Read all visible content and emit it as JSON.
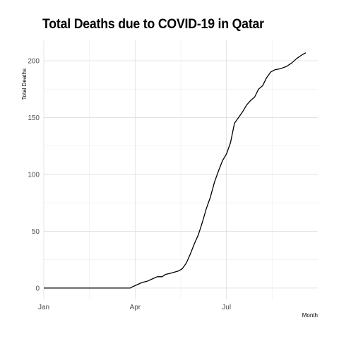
{
  "chart_data": {
    "type": "line",
    "title": "Total Deaths due to COVID-19 in Qatar",
    "xlabel": "Month",
    "ylabel": "Total Deaths",
    "x_ticks": [
      "Jan",
      "Apr",
      "Jul"
    ],
    "y_ticks": [
      0,
      50,
      100,
      150,
      200
    ],
    "xlim": [
      "2020-01-01",
      "2020-09-30"
    ],
    "ylim": [
      -10,
      218
    ],
    "grid": true,
    "line_color": "#000000",
    "series": [
      {
        "points": [
          [
            "2020-01-01",
            0
          ],
          [
            "2020-02-01",
            0
          ],
          [
            "2020-03-01",
            0
          ],
          [
            "2020-03-27",
            0
          ],
          [
            "2020-03-29",
            1
          ],
          [
            "2020-04-03",
            3
          ],
          [
            "2020-04-08",
            5
          ],
          [
            "2020-04-13",
            6
          ],
          [
            "2020-04-18",
            8
          ],
          [
            "2020-04-23",
            10
          ],
          [
            "2020-04-28",
            10
          ],
          [
            "2020-05-01",
            12
          ],
          [
            "2020-05-06",
            13
          ],
          [
            "2020-05-10",
            14
          ],
          [
            "2020-05-14",
            15
          ],
          [
            "2020-05-18",
            17
          ],
          [
            "2020-05-22",
            22
          ],
          [
            "2020-05-26",
            30
          ],
          [
            "2020-05-30",
            39
          ],
          [
            "2020-06-03",
            47
          ],
          [
            "2020-06-07",
            58
          ],
          [
            "2020-06-11",
            70
          ],
          [
            "2020-06-15",
            80
          ],
          [
            "2020-06-19",
            93
          ],
          [
            "2020-06-23",
            103
          ],
          [
            "2020-06-27",
            112
          ],
          [
            "2020-07-01",
            118
          ],
          [
            "2020-07-05",
            128
          ],
          [
            "2020-07-09",
            145
          ],
          [
            "2020-07-13",
            150
          ],
          [
            "2020-07-17",
            155
          ],
          [
            "2020-07-21",
            161
          ],
          [
            "2020-07-25",
            165
          ],
          [
            "2020-07-29",
            168
          ],
          [
            "2020-08-02",
            175
          ],
          [
            "2020-08-06",
            178
          ],
          [
            "2020-08-10",
            185
          ],
          [
            "2020-08-14",
            190
          ],
          [
            "2020-08-18",
            192
          ],
          [
            "2020-08-24",
            193
          ],
          [
            "2020-08-30",
            195
          ],
          [
            "2020-09-04",
            198
          ],
          [
            "2020-09-09",
            202
          ],
          [
            "2020-09-14",
            205
          ],
          [
            "2020-09-18",
            207
          ]
        ]
      }
    ]
  }
}
